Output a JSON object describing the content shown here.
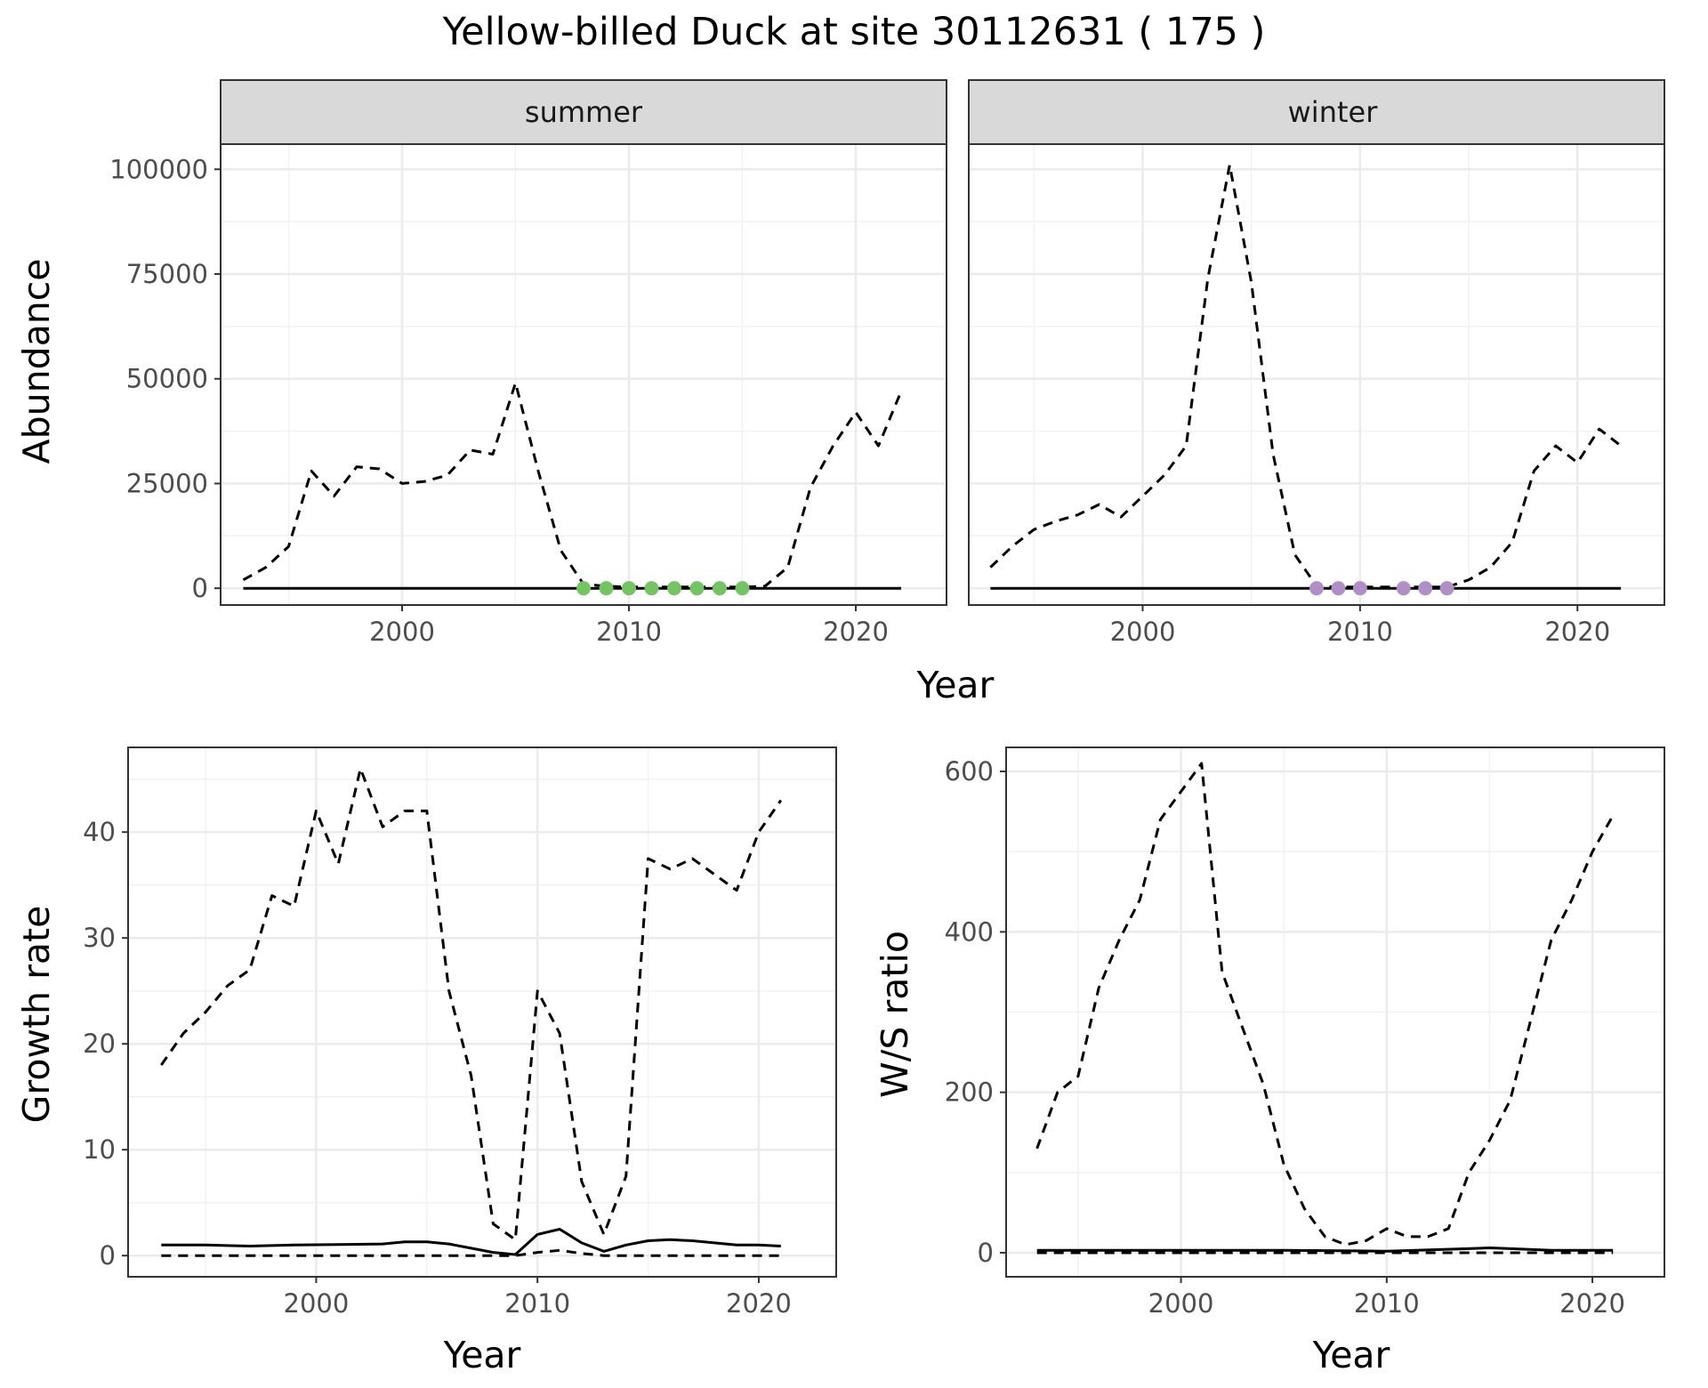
{
  "figure": {
    "title": "Yellow-billed Duck at site 30112631 ( 175 )"
  },
  "chart_data": [
    {
      "id": "abundance",
      "type": "line",
      "facet_labels": [
        "summer",
        "winter"
      ],
      "xlabel": "Year",
      "ylabel": "Abundance",
      "xlim": [
        1992,
        2024
      ],
      "ylim": [
        -4000,
        106000
      ],
      "xticks": [
        2000,
        2010,
        2020
      ],
      "yticks": [
        0,
        25000,
        50000,
        75000,
        100000
      ],
      "grid": true,
      "legend": "none",
      "point_colors": {
        "summer": "#74c464",
        "winter": "#b08fc7"
      },
      "panels": [
        {
          "facet": "summer",
          "series": [
            {
              "style": "dashed",
              "x": [
                1993,
                1994,
                1995,
                1996,
                1997,
                1998,
                1999,
                2000,
                2001,
                2002,
                2003,
                2004,
                2005,
                2006,
                2007,
                2008,
                2009,
                2010,
                2011,
                2012,
                2013,
                2014,
                2015,
                2016,
                2017,
                2018,
                2019,
                2020,
                2021,
                2022
              ],
              "y": [
                2000,
                5000,
                10000,
                28000,
                22000,
                29000,
                28500,
                25000,
                25500,
                27000,
                33000,
                32000,
                49000,
                28000,
                9000,
                1000,
                500,
                300,
                300,
                300,
                300,
                300,
                300,
                500,
                5000,
                24000,
                34000,
                42000,
                34000,
                47000
              ]
            },
            {
              "style": "solid",
              "x": [
                1993,
                2022
              ],
              "y": [
                0,
                0
              ]
            }
          ],
          "points": {
            "x": [
              2008,
              2009,
              2010,
              2011,
              2012,
              2013,
              2014,
              2015
            ],
            "y": [
              0,
              0,
              0,
              0,
              0,
              0,
              0,
              0
            ]
          }
        },
        {
          "facet": "winter",
          "series": [
            {
              "style": "dashed",
              "x": [
                1993,
                1994,
                1995,
                1996,
                1997,
                1998,
                1999,
                2000,
                2001,
                2002,
                2003,
                2004,
                2005,
                2006,
                2007,
                2008,
                2009,
                2010,
                2011,
                2012,
                2013,
                2014,
                2015,
                2016,
                2017,
                2018,
                2019,
                2020,
                2021,
                2022
              ],
              "y": [
                5000,
                10000,
                14000,
                16000,
                17500,
                20000,
                17000,
                22000,
                27000,
                34000,
                74000,
                101000,
                73000,
                32000,
                8000,
                500,
                300,
                300,
                300,
                300,
                300,
                300,
                2000,
                5000,
                11000,
                28000,
                34000,
                30000,
                38000,
                34000
              ]
            },
            {
              "style": "solid",
              "x": [
                1993,
                2022
              ],
              "y": [
                0,
                0
              ]
            }
          ],
          "points": {
            "x": [
              2008,
              2009,
              2010,
              2012,
              2013,
              2014
            ],
            "y": [
              0,
              0,
              0,
              0,
              0,
              0
            ]
          }
        }
      ]
    },
    {
      "id": "growth",
      "type": "line",
      "xlabel": "Year",
      "ylabel": "Growth rate",
      "xlim": [
        1991.5,
        2023.5
      ],
      "ylim": [
        -2,
        48
      ],
      "xticks": [
        2000,
        2010,
        2020
      ],
      "yticks": [
        0,
        10,
        20,
        30,
        40
      ],
      "grid": true,
      "legend": "none",
      "series": [
        {
          "style": "dashed",
          "x": [
            1993,
            1994,
            1995,
            1996,
            1997,
            1998,
            1999,
            2000,
            2001,
            2002,
            2003,
            2004,
            2005,
            2006,
            2007,
            2008,
            2009,
            2010,
            2011,
            2012,
            2013,
            2014,
            2015,
            2016,
            2017,
            2018,
            2019,
            2020,
            2021
          ],
          "y": [
            18,
            21,
            23,
            25.5,
            27,
            34,
            33,
            42,
            37,
            46,
            40.5,
            42,
            42,
            25,
            17,
            3,
            1.5,
            25,
            21,
            7,
            2,
            7.5,
            37.5,
            36.5,
            37.5,
            36,
            34.5,
            40,
            43
          ]
        },
        {
          "style": "dashed",
          "x": [
            1993,
            2000,
            2005,
            2009,
            2010,
            2011,
            2012,
            2013,
            2021
          ],
          "y": [
            0,
            0,
            0,
            0,
            0.3,
            0.5,
            0.2,
            0,
            0
          ]
        },
        {
          "style": "solid",
          "x": [
            1993,
            1995,
            1997,
            1999,
            2001,
            2003,
            2004,
            2005,
            2006,
            2007,
            2008,
            2009,
            2010,
            2011,
            2012,
            2013,
            2014,
            2015,
            2016,
            2017,
            2018,
            2019,
            2020,
            2021
          ],
          "y": [
            1,
            1,
            0.9,
            1,
            1.05,
            1.1,
            1.3,
            1.3,
            1.1,
            0.7,
            0.3,
            0.1,
            2.0,
            2.5,
            1.2,
            0.4,
            1.0,
            1.4,
            1.5,
            1.4,
            1.2,
            1.0,
            1.0,
            0.9
          ]
        }
      ]
    },
    {
      "id": "ratio",
      "type": "line",
      "xlabel": "Year",
      "ylabel": "W/S ratio",
      "xlim": [
        1991.5,
        2023.5
      ],
      "ylim": [
        -30,
        630
      ],
      "xticks": [
        2000,
        2010,
        2020
      ],
      "yticks": [
        0,
        200,
        400,
        600
      ],
      "grid": true,
      "legend": "none",
      "series": [
        {
          "style": "dashed",
          "x": [
            1993,
            1994,
            1995,
            1996,
            1997,
            1998,
            1999,
            2000,
            2001,
            2002,
            2003,
            2004,
            2005,
            2006,
            2007,
            2008,
            2009,
            2010,
            2011,
            2012,
            2013,
            2014,
            2015,
            2016,
            2017,
            2018,
            2019,
            2020,
            2021
          ],
          "y": [
            130,
            200,
            220,
            330,
            390,
            440,
            540,
            575,
            610,
            350,
            280,
            210,
            110,
            55,
            20,
            10,
            15,
            30,
            20,
            20,
            30,
            100,
            140,
            190,
            290,
            390,
            440,
            500,
            545
          ]
        },
        {
          "style": "dashed",
          "x": [
            1993,
            2021
          ],
          "y": [
            0,
            0
          ]
        },
        {
          "style": "solid",
          "x": [
            1993,
            2000,
            2005,
            2010,
            2014,
            2015,
            2016,
            2018,
            2021
          ],
          "y": [
            3,
            3,
            3,
            2,
            5,
            6,
            5,
            3,
            3
          ]
        }
      ]
    }
  ]
}
